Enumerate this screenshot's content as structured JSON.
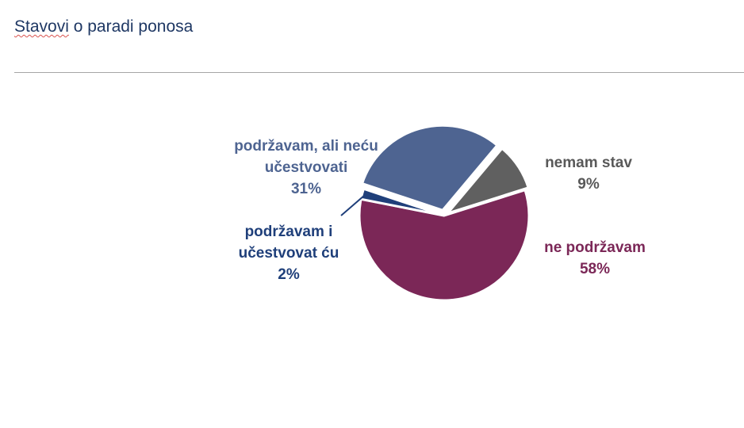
{
  "page": {
    "title_first_word": "Stavovi",
    "title_rest": " o paradi ponosa"
  },
  "chart_data": {
    "type": "pie",
    "title": "Stavovi o paradi ponosa",
    "slices": [
      {
        "label_lines": [
          "nemam stav"
        ],
        "value": 9,
        "value_text": "9%",
        "color": "#606060",
        "label_color": "#595959"
      },
      {
        "label_lines": [
          "ne podržavam"
        ],
        "value": 58,
        "value_text": "58%",
        "color": "#7b2757",
        "label_color": "#7b2757"
      },
      {
        "label_lines": [
          "podržavam i",
          "učestvovat ću"
        ],
        "value": 2,
        "value_text": "2%",
        "color": "#1f3f7a",
        "label_color": "#1f3f7a"
      },
      {
        "label_lines": [
          "podržavam, ali neću",
          "učestvovati"
        ],
        "value": 31,
        "value_text": "31%",
        "color": "#4e6491",
        "label_color": "#4e6491"
      }
    ]
  }
}
